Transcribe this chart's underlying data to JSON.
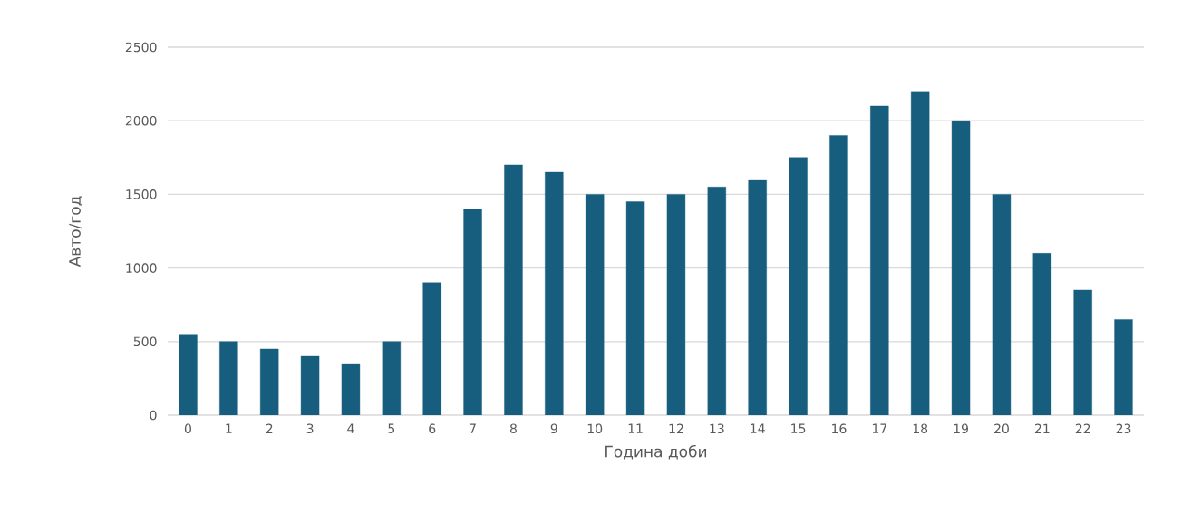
{
  "chart_data": {
    "type": "bar",
    "xlabel": "Година доби",
    "ylabel": "Авто/год",
    "categories": [
      "0",
      "1",
      "2",
      "3",
      "4",
      "5",
      "6",
      "7",
      "8",
      "9",
      "10",
      "11",
      "12",
      "13",
      "14",
      "15",
      "16",
      "17",
      "18",
      "19",
      "20",
      "21",
      "22",
      "23"
    ],
    "values": [
      550,
      500,
      450,
      400,
      350,
      500,
      900,
      1400,
      1700,
      1650,
      1500,
      1450,
      1500,
      1550,
      1600,
      1750,
      1900,
      2100,
      2200,
      2000,
      1500,
      1100,
      850,
      650
    ],
    "color": "#175e7e",
    "ylim": [
      0,
      2500
    ],
    "yticks": [
      0,
      500,
      1000,
      1500,
      2000,
      2500
    ],
    "grid": "y"
  }
}
